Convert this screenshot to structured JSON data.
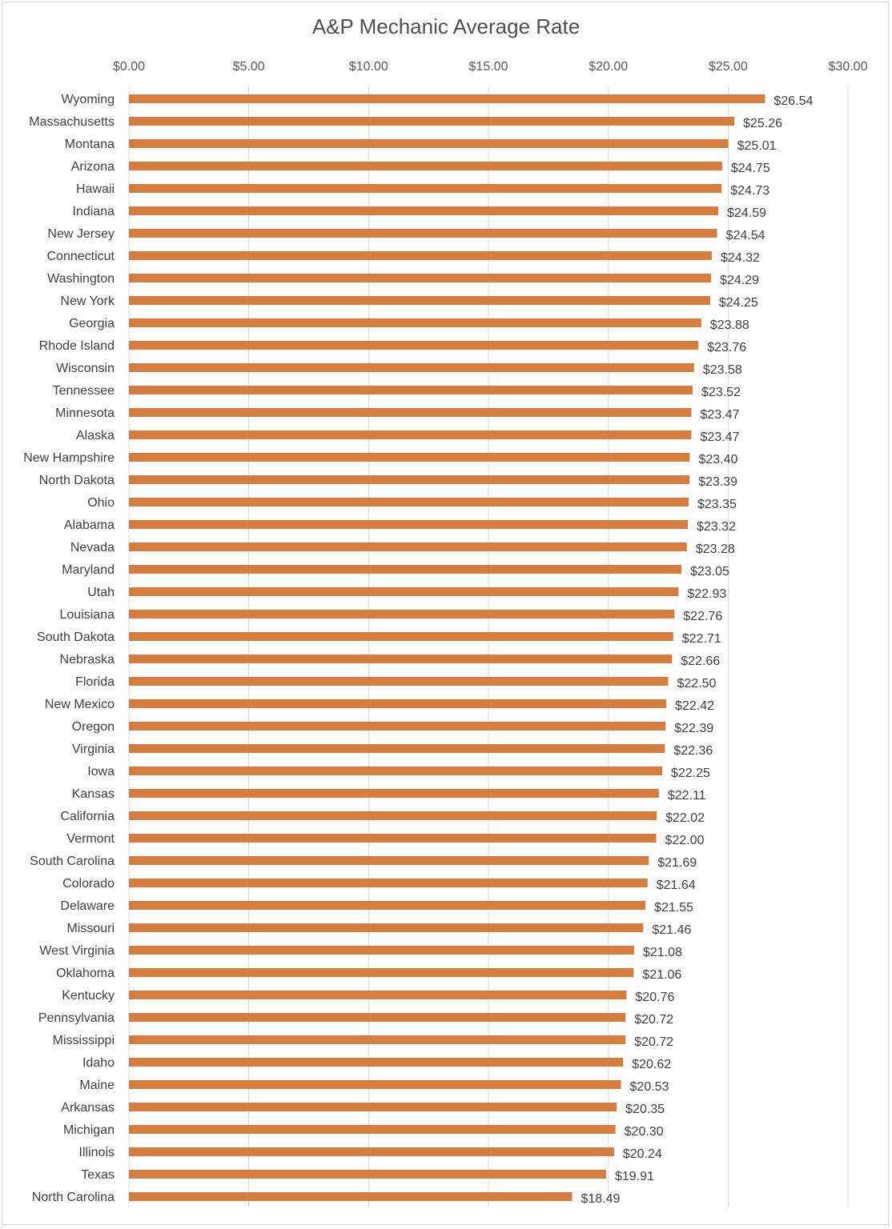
{
  "chart_data": {
    "type": "bar",
    "orientation": "horizontal",
    "title": "A&P Mechanic Average Rate",
    "xlabel": "",
    "ylabel": "",
    "xlim": [
      0,
      30
    ],
    "x_ticks": [
      "$0.00",
      "$5.00",
      "$10.00",
      "$15.00",
      "$20.00",
      "$25.00",
      "$30.00"
    ],
    "x_axis_position": "top",
    "grid": true,
    "legend": "none",
    "bar_color": "#D67D3E",
    "categories": [
      "Wyoming",
      "Massachusetts",
      "Montana",
      "Arizona",
      "Hawaii",
      "Indiana",
      "New Jersey",
      "Connecticut",
      "Washington",
      "New York",
      "Georgia",
      "Rhode Island",
      "Wisconsin",
      "Tennessee",
      "Minnesota",
      "Alaska",
      "New Hampshire",
      "North Dakota",
      "Ohio",
      "Alabama",
      "Nevada",
      "Maryland",
      "Utah",
      "Louisiana",
      "South Dakota",
      "Nebraska",
      "Florida",
      "New Mexico",
      "Oregon",
      "Virginia",
      "Iowa",
      "Kansas",
      "California",
      "Vermont",
      "South Carolina",
      "Colorado",
      "Delaware",
      "Missouri",
      "West Virginia",
      "Oklahoma",
      "Kentucky",
      "Pennsylvania",
      "Mississippi",
      "Idaho",
      "Maine",
      "Arkansas",
      "Michigan",
      "Illinois",
      "Texas",
      "North Carolina"
    ],
    "values": [
      26.54,
      25.26,
      25.01,
      24.75,
      24.73,
      24.59,
      24.54,
      24.32,
      24.29,
      24.25,
      23.88,
      23.76,
      23.58,
      23.52,
      23.47,
      23.47,
      23.4,
      23.39,
      23.35,
      23.32,
      23.28,
      23.05,
      22.93,
      22.76,
      22.71,
      22.66,
      22.5,
      22.42,
      22.39,
      22.36,
      22.25,
      22.11,
      22.02,
      22.0,
      21.69,
      21.64,
      21.55,
      21.46,
      21.08,
      21.06,
      20.76,
      20.72,
      20.72,
      20.62,
      20.53,
      20.35,
      20.3,
      20.24,
      19.91,
      18.49
    ],
    "data_labels": [
      "$26.54",
      "$25.26",
      "$25.01",
      "$24.75",
      "$24.73",
      "$24.59",
      "$24.54",
      "$24.32",
      "$24.29",
      "$24.25",
      "$23.88",
      "$23.76",
      "$23.58",
      "$23.52",
      "$23.47",
      "$23.47",
      "$23.40",
      "$23.39",
      "$23.35",
      "$23.32",
      "$23.28",
      "$23.05",
      "$22.93",
      "$22.76",
      "$22.71",
      "$22.66",
      "$22.50",
      "$22.42",
      "$22.39",
      "$22.36",
      "$22.25",
      "$22.11",
      "$22.02",
      "$22.00",
      "$21.69",
      "$21.64",
      "$21.55",
      "$21.46",
      "$21.08",
      "$21.06",
      "$20.76",
      "$20.72",
      "$20.72",
      "$20.62",
      "$20.53",
      "$20.35",
      "$20.30",
      "$20.24",
      "$19.91",
      "$18.49"
    ]
  }
}
